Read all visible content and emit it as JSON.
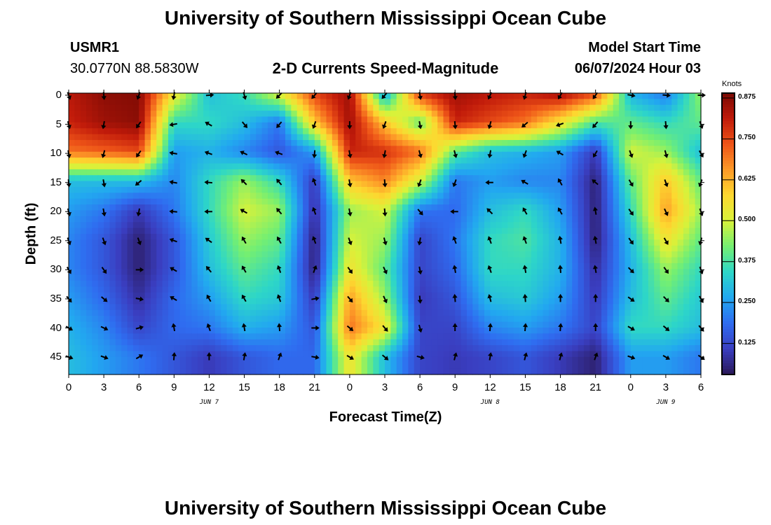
{
  "header": {
    "title": "University of Southern Mississippi Ocean Cube",
    "station_id": "USMR1",
    "coords": "30.0770N  88.5830W",
    "subtitle": "2-D Currents Speed-Magnitude",
    "model_label": "Model Start Time",
    "model_time": "06/07/2024 Hour 03"
  },
  "footer": {
    "title": "University of Southern Mississippi Ocean Cube"
  },
  "colorbar": {
    "unit": "Knots",
    "ticks": [
      "0.875",
      "0.750",
      "0.625",
      "0.500",
      "0.375",
      "0.250",
      "0.125"
    ],
    "range": [
      0.03,
      0.89
    ],
    "colors": [
      "#2a1858",
      "#3a3ec0",
      "#2f6cf0",
      "#22a8f0",
      "#2dd6c8",
      "#74ef72",
      "#d8f23a",
      "#fdd830",
      "#fd9a28",
      "#ee5418",
      "#c01a0a",
      "#7a0a04"
    ]
  },
  "chart_data": {
    "type": "heatmap",
    "title": "2-D Currents Speed-Magnitude",
    "xlabel": "Forecast Time(Z)",
    "ylabel": "Depth (ft)",
    "x_tick_labels": [
      "0",
      "3",
      "6",
      "9",
      "12",
      "15",
      "18",
      "21",
      "0",
      "3",
      "6",
      "9",
      "12",
      "15",
      "18",
      "21",
      "0",
      "3",
      "6"
    ],
    "y_tick_labels": [
      "0",
      "5",
      "10",
      "15",
      "20",
      "25",
      "30",
      "35",
      "40",
      "45"
    ],
    "date_labels": [
      {
        "label": "JUN 7",
        "hour": 12
      },
      {
        "label": "JUN 8",
        "hour": 36
      },
      {
        "label": "JUN 9",
        "hour": 51
      }
    ],
    "xlim_hours": [
      0,
      54
    ],
    "ylim_depth_ft": [
      0,
      48
    ],
    "value_range_knots": [
      0.03,
      0.89
    ],
    "time_hours": [
      0,
      3,
      6,
      9,
      12,
      15,
      18,
      21,
      24,
      27,
      30,
      33,
      36,
      39,
      42,
      45,
      48,
      51,
      54
    ],
    "depth_ft": [
      0,
      5,
      10,
      15,
      20,
      25,
      30,
      35,
      40,
      45
    ],
    "speed_knots": [
      [
        0.82,
        0.87,
        0.88,
        0.55,
        0.3,
        0.36,
        0.52,
        0.76,
        0.85,
        0.25,
        0.78,
        0.85,
        0.82,
        0.8,
        0.85,
        0.75,
        0.28,
        0.2,
        0.45
      ],
      [
        0.8,
        0.85,
        0.87,
        0.35,
        0.35,
        0.3,
        0.2,
        0.6,
        0.85,
        0.6,
        0.4,
        0.8,
        0.75,
        0.7,
        0.55,
        0.38,
        0.4,
        0.35,
        0.4
      ],
      [
        0.7,
        0.72,
        0.75,
        0.25,
        0.28,
        0.22,
        0.15,
        0.25,
        0.8,
        0.78,
        0.7,
        0.4,
        0.3,
        0.28,
        0.25,
        0.1,
        0.5,
        0.45,
        0.3
      ],
      [
        0.3,
        0.3,
        0.3,
        0.22,
        0.35,
        0.45,
        0.35,
        0.1,
        0.6,
        0.68,
        0.5,
        0.2,
        0.25,
        0.22,
        0.22,
        0.05,
        0.4,
        0.6,
        0.4
      ],
      [
        0.25,
        0.2,
        0.1,
        0.2,
        0.35,
        0.5,
        0.45,
        0.08,
        0.45,
        0.5,
        0.2,
        0.18,
        0.3,
        0.35,
        0.25,
        0.05,
        0.35,
        0.65,
        0.45
      ],
      [
        0.22,
        0.15,
        0.05,
        0.15,
        0.32,
        0.45,
        0.4,
        0.05,
        0.5,
        0.45,
        0.12,
        0.2,
        0.35,
        0.38,
        0.28,
        0.05,
        0.3,
        0.55,
        0.4
      ],
      [
        0.22,
        0.15,
        0.05,
        0.15,
        0.3,
        0.4,
        0.35,
        0.05,
        0.55,
        0.4,
        0.12,
        0.18,
        0.35,
        0.35,
        0.28,
        0.08,
        0.28,
        0.45,
        0.35
      ],
      [
        0.25,
        0.18,
        0.08,
        0.18,
        0.25,
        0.35,
        0.32,
        0.1,
        0.65,
        0.45,
        0.1,
        0.15,
        0.3,
        0.32,
        0.25,
        0.1,
        0.3,
        0.4,
        0.32
      ],
      [
        0.28,
        0.22,
        0.12,
        0.18,
        0.2,
        0.28,
        0.25,
        0.15,
        0.7,
        0.55,
        0.12,
        0.12,
        0.22,
        0.25,
        0.2,
        0.12,
        0.35,
        0.35,
        0.3
      ],
      [
        0.3,
        0.25,
        0.2,
        0.15,
        0.1,
        0.15,
        0.18,
        0.18,
        0.55,
        0.3,
        0.12,
        0.1,
        0.12,
        0.15,
        0.1,
        0.05,
        0.25,
        0.25,
        0.2
      ]
    ],
    "arrow_direction_deg": [
      [
        160,
        175,
        200,
        190,
        85,
        165,
        225,
        220,
        200,
        220,
        170,
        175,
        205,
        195,
        210,
        215,
        100,
        95,
        90
      ],
      [
        165,
        190,
        215,
        260,
        300,
        140,
        220,
        200,
        180,
        200,
        170,
        175,
        195,
        230,
        250,
        220,
        180,
        175,
        160
      ],
      [
        170,
        195,
        215,
        280,
        290,
        295,
        290,
        185,
        170,
        190,
        165,
        165,
        190,
        200,
        300,
        210,
        160,
        165,
        150
      ],
      [
        175,
        170,
        230,
        280,
        275,
        315,
        320,
        340,
        170,
        175,
        200,
        200,
        270,
        300,
        330,
        310,
        150,
        160,
        200
      ],
      [
        165,
        170,
        190,
        275,
        270,
        300,
        320,
        340,
        170,
        175,
        140,
        270,
        315,
        330,
        330,
        350,
        145,
        155,
        160
      ],
      [
        160,
        160,
        160,
        290,
        305,
        330,
        330,
        340,
        160,
        165,
        190,
        340,
        340,
        340,
        350,
        350,
        145,
        150,
        195
      ],
      [
        150,
        145,
        90,
        300,
        320,
        330,
        340,
        20,
        145,
        155,
        170,
        350,
        340,
        350,
        355,
        350,
        135,
        145,
        160
      ],
      [
        140,
        130,
        100,
        300,
        330,
        330,
        340,
        80,
        140,
        155,
        175,
        355,
        345,
        355,
        0,
        0,
        125,
        135,
        150
      ],
      [
        120,
        115,
        75,
        350,
        340,
        350,
        355,
        90,
        130,
        140,
        165,
        0,
        5,
        5,
        5,
        0,
        120,
        130,
        140
      ],
      [
        110,
        110,
        60,
        5,
        0,
        10,
        20,
        100,
        120,
        130,
        105,
        15,
        10,
        15,
        15,
        20,
        110,
        120,
        125
      ]
    ]
  }
}
